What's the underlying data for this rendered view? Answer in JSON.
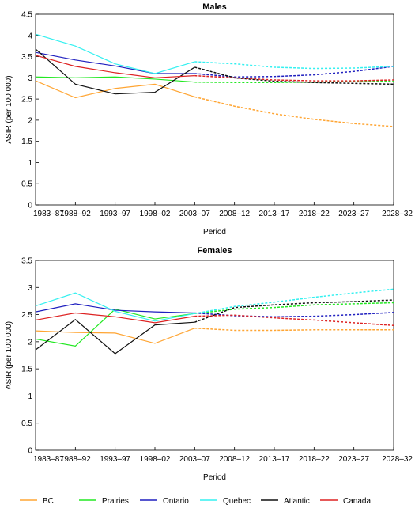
{
  "chart_data": [
    {
      "type": "line",
      "title": "Males",
      "xlabel": "Period",
      "ylabel": "ASIR (per 100 000)",
      "categories": [
        "1983–87",
        "1988–92",
        "1993–97",
        "1998–02",
        "2003–07",
        "2008–12",
        "2013–17",
        "2018–22",
        "2023–27",
        "2028–32"
      ],
      "ylim": [
        0,
        4.5
      ],
      "yticks": [
        "0",
        "0.5",
        "1",
        "1.5",
        "2",
        "2.5",
        "3",
        "3.5",
        "4",
        "4.5"
      ],
      "observed_through": "2003–07",
      "series": [
        {
          "name": "BC",
          "values": [
            2.93,
            2.53,
            2.75,
            2.85,
            2.55,
            2.33,
            2.15,
            2.02,
            1.92,
            1.85
          ]
        },
        {
          "name": "Prairies",
          "values": [
            3.02,
            3.0,
            3.02,
            2.97,
            2.9,
            2.89,
            2.89,
            2.9,
            2.92,
            2.92
          ]
        },
        {
          "name": "Ontario",
          "values": [
            3.6,
            3.42,
            3.28,
            3.1,
            3.1,
            3.02,
            3.03,
            3.07,
            3.15,
            3.27
          ]
        },
        {
          "name": "Quebec",
          "values": [
            4.03,
            3.75,
            3.33,
            3.1,
            3.38,
            3.33,
            3.25,
            3.22,
            3.23,
            3.27
          ]
        },
        {
          "name": "Atlantic",
          "values": [
            3.68,
            2.85,
            2.62,
            2.66,
            3.25,
            3.0,
            2.92,
            2.89,
            2.87,
            2.85
          ]
        },
        {
          "name": "Canada",
          "values": [
            3.53,
            3.27,
            3.12,
            3.0,
            3.05,
            3.0,
            2.95,
            2.93,
            2.93,
            2.95
          ]
        }
      ]
    },
    {
      "type": "line",
      "title": "Females",
      "xlabel": "Period",
      "ylabel": "ASIR (per 100 000)",
      "categories": [
        "1983–87",
        "1988–92",
        "1993–97",
        "1998–02",
        "2003–07",
        "2008–12",
        "2013–17",
        "2018–22",
        "2023–27",
        "2028–32"
      ],
      "ylim": [
        0,
        3.5
      ],
      "yticks": [
        "0",
        "0.5",
        "1",
        "1.5",
        "2",
        "2.5",
        "3",
        "3.5"
      ],
      "observed_through": "2003–07",
      "series": [
        {
          "name": "BC",
          "values": [
            2.2,
            2.17,
            2.16,
            1.97,
            2.25,
            2.21,
            2.21,
            2.22,
            2.22,
            2.22
          ]
        },
        {
          "name": "Prairies",
          "values": [
            2.05,
            1.92,
            2.6,
            2.42,
            2.52,
            2.6,
            2.63,
            2.68,
            2.7,
            2.72
          ]
        },
        {
          "name": "Ontario",
          "values": [
            2.55,
            2.7,
            2.58,
            2.55,
            2.53,
            2.48,
            2.46,
            2.47,
            2.5,
            2.54
          ]
        },
        {
          "name": "Quebec",
          "values": [
            2.66,
            2.9,
            2.56,
            2.38,
            2.52,
            2.65,
            2.73,
            2.82,
            2.9,
            2.97
          ]
        },
        {
          "name": "Atlantic",
          "values": [
            1.85,
            2.41,
            1.78,
            2.31,
            2.36,
            2.63,
            2.68,
            2.72,
            2.74,
            2.77
          ]
        },
        {
          "name": "Canada",
          "values": [
            2.4,
            2.53,
            2.46,
            2.35,
            2.47,
            2.49,
            2.44,
            2.4,
            2.35,
            2.3
          ]
        }
      ]
    }
  ],
  "legend": [
    {
      "name": "BC",
      "color": "#ffa533"
    },
    {
      "name": "Prairies",
      "color": "#22e822"
    },
    {
      "name": "Ontario",
      "color": "#1f1fbf"
    },
    {
      "name": "Quebec",
      "color": "#33f0f0"
    },
    {
      "name": "Atlantic",
      "color": "#111111"
    },
    {
      "name": "Canada",
      "color": "#dd2222"
    }
  ],
  "legend_position": "bottom"
}
